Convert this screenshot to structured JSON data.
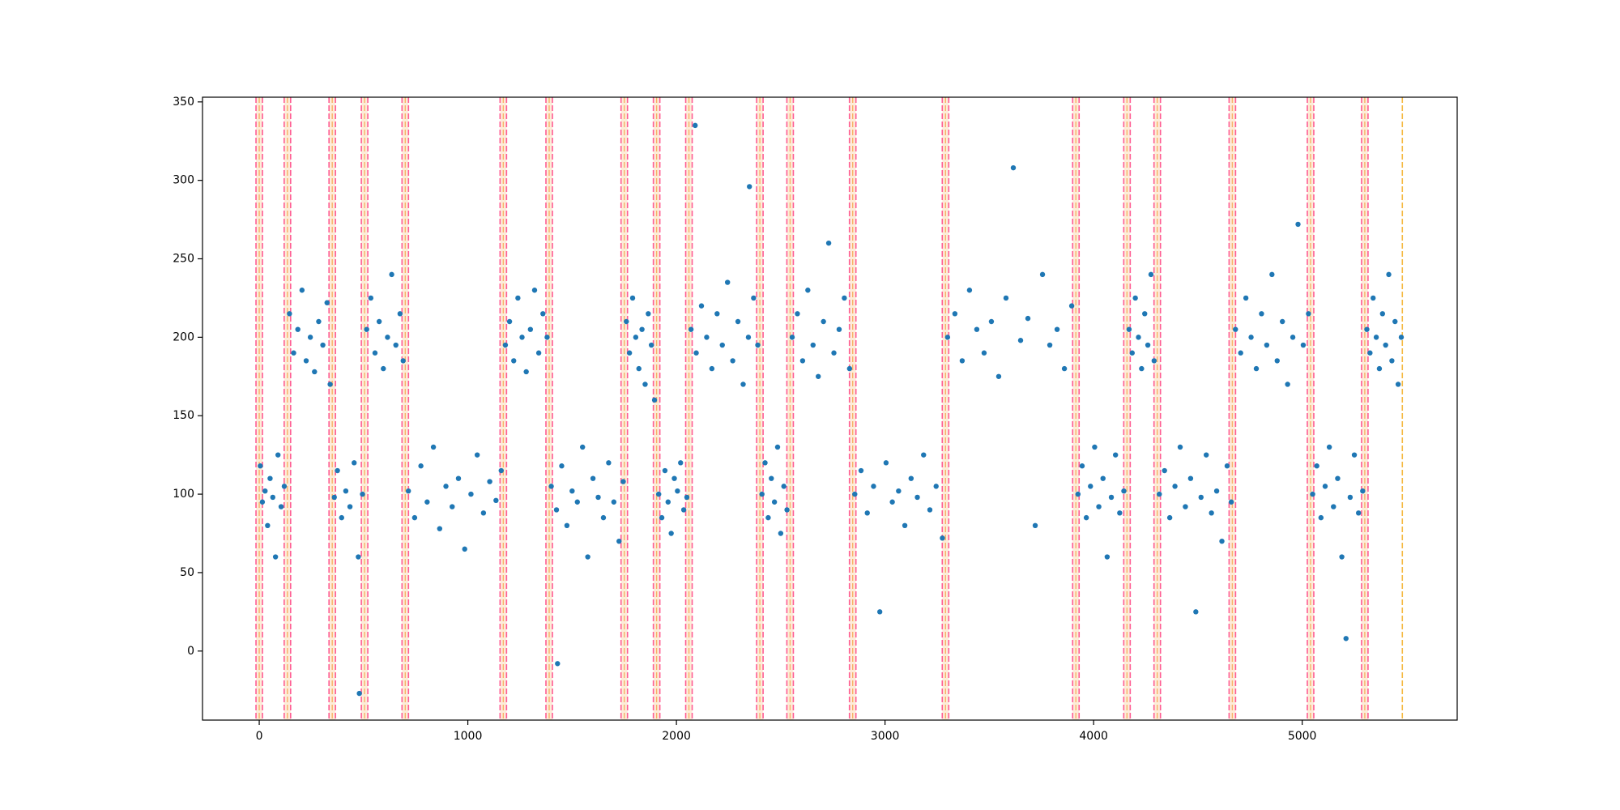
{
  "chart_data": {
    "type": "scatter",
    "color": "#1f77b4",
    "xlim": [
      -272,
      5743
    ],
    "ylim": [
      -44,
      353
    ],
    "xticks": [
      0,
      1000,
      2000,
      3000,
      4000,
      5000
    ],
    "yticks": [
      0,
      50,
      100,
      150,
      200,
      250,
      300,
      350
    ],
    "grid": false,
    "changepoints": {
      "color": "#ff5c93",
      "band_color": "#f7b267",
      "x": [
        0,
        135,
        350,
        505,
        700,
        1170,
        1390,
        1750,
        1905,
        2060,
        2400,
        2545,
        2845,
        3290,
        3915,
        4160,
        4305,
        4665,
        5040,
        5300
      ]
    },
    "end_line": {
      "color": "#f5b942",
      "x": 5480
    },
    "x": [
      5,
      15,
      28,
      40,
      52,
      65,
      78,
      90,
      105,
      120,
      145,
      165,
      185,
      205,
      225,
      245,
      265,
      285,
      305,
      325,
      340,
      360,
      375,
      395,
      415,
      435,
      455,
      475,
      495,
      515,
      535,
      555,
      575,
      595,
      615,
      635,
      655,
      675,
      690,
      715,
      745,
      775,
      805,
      835,
      865,
      895,
      925,
      955,
      985,
      1015,
      1045,
      1075,
      1105,
      1135,
      1160,
      1180,
      1200,
      1220,
      1240,
      1260,
      1280,
      1300,
      1320,
      1340,
      1360,
      1380,
      1400,
      1425,
      1450,
      1475,
      1500,
      1525,
      1550,
      1575,
      1600,
      1625,
      1650,
      1675,
      1700,
      1725,
      1745,
      1760,
      1775,
      1790,
      1805,
      1820,
      1835,
      1850,
      1865,
      1880,
      1895,
      1915,
      1930,
      1945,
      1960,
      1975,
      1990,
      2005,
      2020,
      2035,
      2050,
      2070,
      2095,
      2120,
      2145,
      2170,
      2195,
      2220,
      2245,
      2270,
      2295,
      2320,
      2345,
      2370,
      2390,
      2410,
      2425,
      2440,
      2455,
      2470,
      2485,
      2500,
      2515,
      2530,
      2555,
      2580,
      2605,
      2630,
      2655,
      2680,
      2705,
      2730,
      2755,
      2780,
      2805,
      2830,
      2855,
      2885,
      2915,
      2945,
      2975,
      3005,
      3035,
      3065,
      3095,
      3125,
      3155,
      3185,
      3215,
      3245,
      3275,
      3300,
      3335,
      3370,
      3405,
      3440,
      3475,
      3510,
      3545,
      3580,
      3615,
      3650,
      3685,
      3720,
      3755,
      3790,
      3825,
      3860,
      3895,
      3925,
      3945,
      3965,
      3985,
      4005,
      4025,
      4045,
      4065,
      4085,
      4105,
      4125,
      4145,
      4170,
      4185,
      4200,
      4215,
      4230,
      4245,
      4260,
      4275,
      4290,
      4315,
      4340,
      4365,
      4390,
      4415,
      4440,
      4465,
      4490,
      4515,
      4540,
      4565,
      4590,
      4615,
      4640,
      4660,
      4680,
      4705,
      4730,
      4755,
      4780,
      4805,
      4830,
      4855,
      4880,
      4905,
      4930,
      4955,
      4980,
      5005,
      5030,
      5050,
      5070,
      5090,
      5110,
      5130,
      5150,
      5170,
      5190,
      5210,
      5230,
      5250,
      5270,
      5290,
      5310,
      5325,
      5340,
      5355,
      5370,
      5385,
      5400,
      5415,
      5430,
      5445,
      5460,
      5475,
      2090,
      2350,
      480,
      1430
    ],
    "y": [
      118,
      95,
      102,
      80,
      110,
      98,
      60,
      125,
      92,
      105,
      215,
      190,
      205,
      230,
      185,
      200,
      178,
      210,
      195,
      222,
      170,
      98,
      115,
      85,
      102,
      92,
      120,
      60,
      100,
      205,
      225,
      190,
      210,
      180,
      200,
      240,
      195,
      215,
      185,
      102,
      85,
      118,
      95,
      130,
      78,
      105,
      92,
      110,
      65,
      100,
      125,
      88,
      108,
      96,
      115,
      195,
      210,
      185,
      225,
      200,
      178,
      205,
      230,
      190,
      215,
      200,
      105,
      90,
      118,
      80,
      102,
      95,
      130,
      60,
      110,
      98,
      85,
      120,
      95,
      70,
      108,
      210,
      190,
      225,
      200,
      180,
      205,
      170,
      215,
      195,
      160,
      100,
      85,
      115,
      95,
      75,
      110,
      102,
      120,
      90,
      98,
      205,
      190,
      220,
      200,
      180,
      215,
      195,
      235,
      185,
      210,
      170,
      200,
      225,
      195,
      100,
      120,
      85,
      110,
      95,
      130,
      75,
      105,
      90,
      200,
      215,
      185,
      230,
      195,
      175,
      210,
      260,
      190,
      205,
      225,
      180,
      100,
      115,
      88,
      105,
      25,
      120,
      95,
      102,
      80,
      110,
      98,
      125,
      90,
      105,
      72,
      200,
      215,
      185,
      230,
      205,
      190,
      210,
      175,
      225,
      308,
      198,
      212,
      80,
      240,
      195,
      205,
      180,
      220,
      100,
      118,
      85,
      105,
      130,
      92,
      110,
      60,
      98,
      125,
      88,
      102,
      205,
      190,
      225,
      200,
      180,
      215,
      195,
      240,
      185,
      100,
      115,
      85,
      105,
      130,
      92,
      110,
      25,
      98,
      125,
      88,
      102,
      70,
      118,
      95,
      205,
      190,
      225,
      200,
      180,
      215,
      195,
      240,
      185,
      210,
      170,
      200,
      272,
      195,
      215,
      100,
      118,
      85,
      105,
      130,
      92,
      110,
      60,
      8,
      98,
      125,
      88,
      102,
      205,
      190,
      225,
      200,
      180,
      215,
      195,
      240,
      185,
      210,
      170,
      200,
      335,
      296,
      -27,
      -8
    ]
  }
}
